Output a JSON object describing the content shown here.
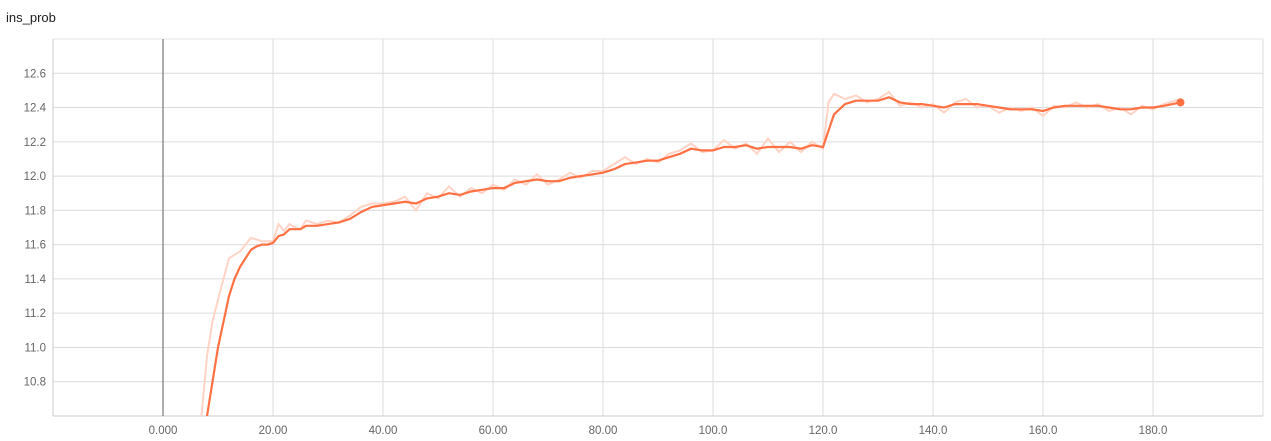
{
  "chart_data": {
    "type": "line",
    "title": "ins_prob",
    "xlabel": "",
    "ylabel": "",
    "xlim": [
      -20,
      200
    ],
    "ylim": [
      10.6,
      12.8
    ],
    "grid": true,
    "x_ticks": [
      "0.000",
      "20.00",
      "40.00",
      "60.00",
      "80.00",
      "100.0",
      "120.0",
      "140.0",
      "160.0",
      "180.0"
    ],
    "x_tick_values": [
      0,
      20,
      40,
      60,
      80,
      100,
      120,
      140,
      160,
      180
    ],
    "y_ticks": [
      "10.8",
      "11.0",
      "11.2",
      "11.4",
      "11.6",
      "11.8",
      "12.0",
      "12.2",
      "12.4",
      "12.6"
    ],
    "y_tick_values": [
      10.8,
      11.0,
      11.2,
      11.4,
      11.6,
      11.8,
      12.0,
      12.2,
      12.4,
      12.6
    ],
    "colors": {
      "smoothed": "#ff7043",
      "raw": "#ffd4c6",
      "cursor": "#777777"
    },
    "cursor_x": 0,
    "series": [
      {
        "role": "smoothed",
        "x": [
          8,
          9,
          10,
          11,
          12,
          13,
          14,
          15,
          16,
          17,
          18,
          19,
          20,
          21,
          22,
          23,
          24,
          25,
          26,
          28,
          30,
          32,
          34,
          36,
          38,
          40,
          42,
          44,
          46,
          48,
          50,
          52,
          54,
          56,
          58,
          60,
          62,
          64,
          66,
          68,
          70,
          72,
          74,
          76,
          78,
          80,
          82,
          84,
          86,
          88,
          90,
          92,
          94,
          96,
          98,
          100,
          102,
          104,
          106,
          108,
          110,
          112,
          114,
          116,
          118,
          120,
          122,
          124,
          126,
          128,
          130,
          132,
          134,
          136,
          138,
          140,
          142,
          144,
          146,
          148,
          150,
          152,
          154,
          156,
          158,
          160,
          162,
          164,
          166,
          168,
          170,
          172,
          174,
          176,
          178,
          180,
          182,
          185
        ],
        "y": [
          10.6,
          10.8,
          11.0,
          11.15,
          11.3,
          11.4,
          11.47,
          11.52,
          11.57,
          11.59,
          11.6,
          11.6,
          11.61,
          11.65,
          11.66,
          11.69,
          11.69,
          11.69,
          11.71,
          11.71,
          11.72,
          11.73,
          11.75,
          11.79,
          11.82,
          11.83,
          11.84,
          11.85,
          11.84,
          11.87,
          11.88,
          11.9,
          11.89,
          11.91,
          11.92,
          11.93,
          11.93,
          11.96,
          11.97,
          11.98,
          11.97,
          11.97,
          11.99,
          12.0,
          12.01,
          12.02,
          12.04,
          12.07,
          12.08,
          12.09,
          12.09,
          12.11,
          12.13,
          12.16,
          12.15,
          12.15,
          12.17,
          12.17,
          12.18,
          12.16,
          12.17,
          12.17,
          12.17,
          12.16,
          12.18,
          12.17,
          12.36,
          12.42,
          12.44,
          12.44,
          12.44,
          12.46,
          12.43,
          12.42,
          12.42,
          12.41,
          12.4,
          12.42,
          12.42,
          12.42,
          12.41,
          12.4,
          12.39,
          12.39,
          12.39,
          12.38,
          12.4,
          12.41,
          12.41,
          12.41,
          12.41,
          12.4,
          12.39,
          12.39,
          12.4,
          12.4,
          12.41,
          12.43
        ]
      },
      {
        "role": "raw",
        "x": [
          7,
          8,
          9,
          10,
          11,
          12,
          14,
          16,
          18,
          20,
          21,
          22,
          23,
          24,
          25,
          26,
          28,
          30,
          32,
          34,
          36,
          38,
          40,
          42,
          44,
          46,
          48,
          50,
          52,
          54,
          56,
          58,
          60,
          62,
          64,
          66,
          68,
          70,
          72,
          74,
          76,
          78,
          80,
          82,
          84,
          86,
          88,
          90,
          92,
          94,
          96,
          98,
          100,
          102,
          104,
          106,
          108,
          110,
          112,
          114,
          116,
          118,
          120,
          121,
          122,
          124,
          126,
          128,
          130,
          132,
          134,
          136,
          138,
          140,
          142,
          144,
          146,
          148,
          150,
          152,
          154,
          156,
          158,
          160,
          162,
          164,
          166,
          168,
          170,
          172,
          174,
          176,
          178,
          180,
          182,
          185
        ],
        "y": [
          10.6,
          10.95,
          11.15,
          11.28,
          11.4,
          11.52,
          11.56,
          11.64,
          11.62,
          11.62,
          11.72,
          11.68,
          11.72,
          11.7,
          11.69,
          11.74,
          11.72,
          11.74,
          11.73,
          11.77,
          11.82,
          11.84,
          11.84,
          11.85,
          11.88,
          11.8,
          11.9,
          11.87,
          11.94,
          11.88,
          11.93,
          11.9,
          11.95,
          11.92,
          11.98,
          11.95,
          12.01,
          11.95,
          11.98,
          12.02,
          11.99,
          12.03,
          12.03,
          12.07,
          12.11,
          12.07,
          12.1,
          12.08,
          12.13,
          12.15,
          12.19,
          12.14,
          12.15,
          12.21,
          12.16,
          12.19,
          12.13,
          12.22,
          12.14,
          12.2,
          12.14,
          12.2,
          12.16,
          12.43,
          12.48,
          12.45,
          12.47,
          12.43,
          12.45,
          12.49,
          12.41,
          12.43,
          12.4,
          12.42,
          12.37,
          12.43,
          12.45,
          12.4,
          12.41,
          12.37,
          12.4,
          12.38,
          12.4,
          12.35,
          12.41,
          12.4,
          12.43,
          12.4,
          12.42,
          12.38,
          12.4,
          12.36,
          12.41,
          12.39,
          12.42,
          12.45
        ]
      }
    ]
  }
}
